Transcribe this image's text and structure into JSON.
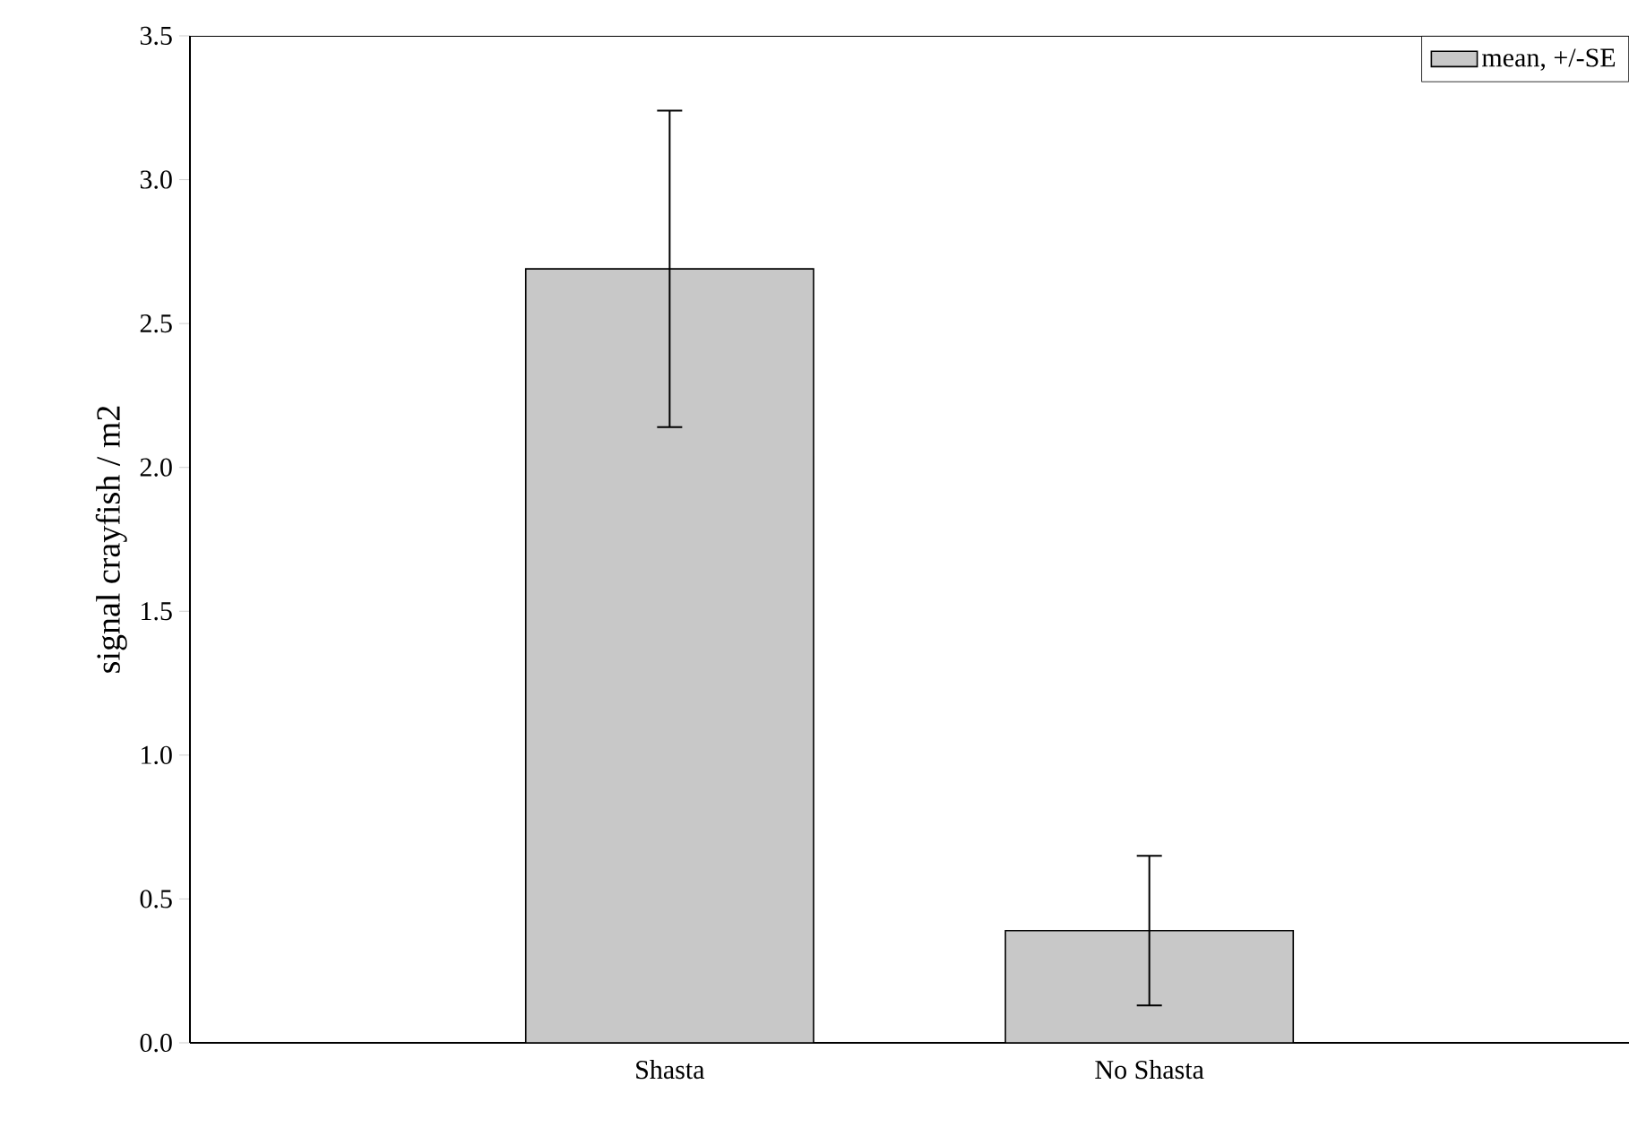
{
  "chart_data": {
    "type": "bar",
    "ylabel": "signal crayfish / m2",
    "categories": [
      "Shasta",
      "No Shasta"
    ],
    "series": [
      {
        "name": "mean, +/-SE",
        "color": "#c8c8c8",
        "values": [
          2.69,
          0.39
        ],
        "errors": [
          0.55,
          0.26
        ]
      }
    ],
    "ylim": [
      0,
      3.5
    ],
    "yticks": [
      {
        "value": 0,
        "label": "0.0"
      },
      {
        "value": 0.5,
        "label": "0.5"
      },
      {
        "value": 1,
        "label": "1.0"
      },
      {
        "value": 1.5,
        "label": "1.5"
      },
      {
        "value": 2,
        "label": "2.0"
      },
      {
        "value": 2.5,
        "label": "2.5"
      },
      {
        "value": 3,
        "label": "3.0"
      },
      {
        "value": 3.5,
        "label": "3.5"
      }
    ],
    "grid": false,
    "legend": "top right"
  }
}
